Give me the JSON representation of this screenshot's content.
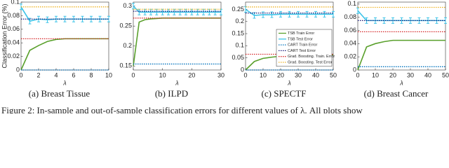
{
  "chart_data": [
    {
      "type": "line",
      "caption": "(a) Breast Tissue",
      "xlabel": "λ",
      "ylabel": "Classification Error (%)",
      "x": [
        0,
        1,
        2,
        3,
        4,
        5,
        6,
        7,
        8,
        9,
        10
      ],
      "xlim": [
        0,
        10
      ],
      "xticks": [
        0,
        2,
        4,
        6,
        8,
        10
      ],
      "ylim": [
        0,
        0.1
      ],
      "yticks": [
        0,
        0.02,
        0.04,
        0.06,
        0.08,
        0.1
      ],
      "series": [
        {
          "color": "#5aa02c",
          "values": [
            0,
            0.029,
            0.036,
            0.042,
            0.045,
            0.046,
            0.046,
            0.046,
            0.046,
            0.046,
            0.046
          ]
        },
        {
          "color": "#3cc3e8",
          "marker": true,
          "values": [
            0.093,
            0.072,
            0.075,
            0.074,
            0.075,
            0.075,
            0.075,
            0.075,
            0.075,
            0.075,
            0.075
          ]
        },
        {
          "color": "#0072bd",
          "level": 0
        },
        {
          "color": "#1a1a7a",
          "level": 0.075
        },
        {
          "color": "#d62728",
          "level": 0.046
        },
        {
          "color": "#edb120",
          "level": 0.093
        }
      ]
    },
    {
      "type": "line",
      "caption": "(b) ILPD",
      "xlabel": "λ",
      "x": [
        0,
        2,
        4,
        6,
        8,
        10,
        12,
        14,
        16,
        18,
        20,
        22,
        24,
        26,
        28,
        30
      ],
      "xlim": [
        0,
        30
      ],
      "xticks": [
        0,
        10,
        20,
        30
      ],
      "ylim": [
        0.14,
        0.31
      ],
      "yticks": [
        0.15,
        0.2,
        0.25,
        0.3
      ],
      "series": [
        {
          "color": "#5aa02c",
          "values": [
            0.15,
            0.26,
            0.266,
            0.268,
            0.269,
            0.27,
            0.27,
            0.27,
            0.27,
            0.27,
            0.27,
            0.27,
            0.27,
            0.27,
            0.27,
            0.27
          ]
        },
        {
          "color": "#3cc3e8",
          "marker": true,
          "values": [
            0.3,
            0.285,
            0.285,
            0.285,
            0.285,
            0.285,
            0.285,
            0.285,
            0.285,
            0.285,
            0.285,
            0.285,
            0.285,
            0.285,
            0.285,
            0.285
          ]
        },
        {
          "color": "#0072bd",
          "level": 0.155
        },
        {
          "color": "#1a1a7a",
          "level": 0.287
        },
        {
          "color": "#d62728",
          "level": 0.27
        },
        {
          "color": "#edb120",
          "level": 0.292
        }
      ]
    },
    {
      "type": "line",
      "caption": "(c) SPECTF",
      "xlabel": "λ",
      "legend": "center-right",
      "x": [
        0,
        5,
        10,
        15,
        20,
        25,
        30,
        35,
        40,
        45,
        50
      ],
      "xlim": [
        0,
        50
      ],
      "xticks": [
        0,
        10,
        20,
        30,
        40,
        50
      ],
      "ylim": [
        0,
        0.28
      ],
      "yticks": [
        0,
        0.05,
        0.1,
        0.15,
        0.2,
        0.25
      ],
      "series": [
        {
          "name": "TSB Train Error",
          "color": "#5aa02c",
          "values": [
            0,
            0.035,
            0.048,
            0.053,
            0.057,
            0.059,
            0.06,
            0.061,
            0.062,
            0.062,
            0.062
          ]
        },
        {
          "name": "TSB Test Error",
          "color": "#3cc3e8",
          "marker": true,
          "values": [
            0.25,
            0.225,
            0.228,
            0.228,
            0.23,
            0.23,
            0.23,
            0.23,
            0.23,
            0.23,
            0.23
          ]
        },
        {
          "name": "CART Train Error",
          "color": "#0072bd",
          "level": 0
        },
        {
          "name": "CART Test Error",
          "color": "#1a1a7a",
          "level": 0.235
        },
        {
          "name": "Grad. Boosting. Train. Error",
          "color": "#d62728",
          "level": 0.065
        },
        {
          "name": "Grad. Boosting. Test Error",
          "color": "#edb120",
          "level": 0.26
        }
      ]
    },
    {
      "type": "line",
      "caption": "(d) Breast Cancer",
      "xlabel": "λ",
      "x": [
        0,
        5,
        10,
        15,
        20,
        25,
        30,
        35,
        40,
        45,
        50
      ],
      "xlim": [
        0,
        50
      ],
      "xticks": [
        0,
        10,
        20,
        30,
        40,
        50
      ],
      "ylim": [
        0,
        0.103
      ],
      "yticks": [
        0,
        0.02,
        0.04,
        0.06,
        0.08,
        0.1
      ],
      "series": [
        {
          "color": "#5aa02c",
          "values": [
            0,
            0.035,
            0.04,
            0.043,
            0.045,
            0.045,
            0.045,
            0.045,
            0.045,
            0.045,
            0.045
          ]
        },
        {
          "color": "#3cc3e8",
          "marker": true,
          "values": [
            0.09,
            0.075,
            0.075,
            0.075,
            0.075,
            0.075,
            0.075,
            0.075,
            0.075,
            0.075,
            0.075
          ]
        },
        {
          "color": "#0072bd",
          "level": 0.005
        },
        {
          "color": "#1a1a7a",
          "level": 0.075
        },
        {
          "color": "#d62728",
          "level": 0.058
        },
        {
          "color": "#edb120",
          "level": 0.095
        }
      ]
    }
  ],
  "figure_caption": "Figure 2: In-sample and out-of-sample classification errors for different values of λ. All plots show"
}
